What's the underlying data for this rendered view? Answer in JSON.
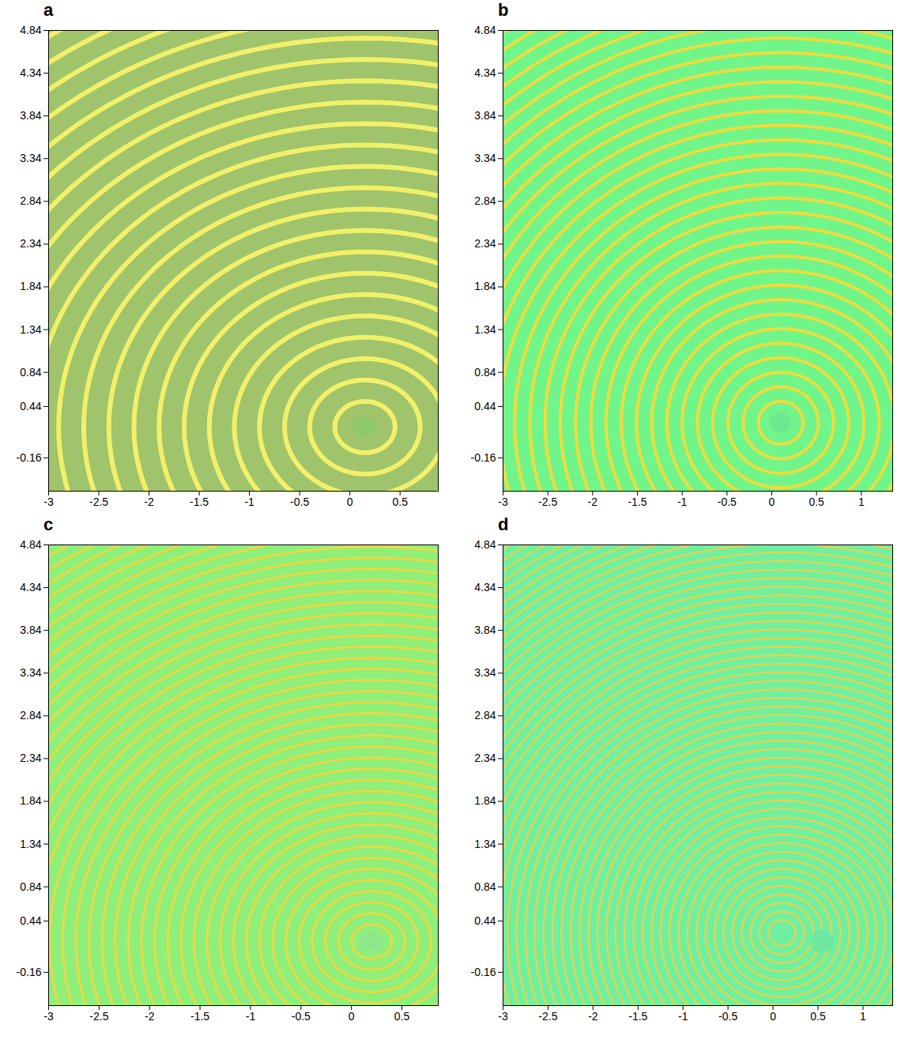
{
  "chart_data": [
    {
      "type": "rings",
      "title": "a",
      "color": "#9fc46b",
      "xlim": [
        -3,
        0.88
      ],
      "xticks": [
        -3,
        -2.5,
        -2,
        -1.5,
        -1,
        -0.5,
        0,
        0.5
      ],
      "ylim": [
        -0.55,
        4.84
      ],
      "yticks": [
        -0.16,
        0.44,
        0.84,
        1.34,
        1.84,
        2.34,
        2.84,
        3.34,
        3.84,
        4.34,
        4.84
      ],
      "crests": {
        "center": [
          0.15,
          0.2
        ],
        "color": "#f2f06a",
        "radii": [
          0.3,
          0.55,
          0.8,
          1.05,
          1.3,
          1.55,
          1.8,
          2.05,
          2.3,
          2.55,
          2.8,
          3.05,
          3.3,
          3.55,
          3.8,
          4.05,
          4.3,
          4.55,
          4.8,
          5.05,
          5.3,
          5.55
        ]
      },
      "obstacle": {
        "center": [
          0.15,
          0.2
        ],
        "radius": 0.12,
        "color": "#8ec96a"
      }
    },
    {
      "type": "rings",
      "title": "b",
      "color": "#70f58a",
      "xlim": [
        -3,
        1.35
      ],
      "xticks": [
        -3,
        -2.5,
        -2,
        -1.5,
        -1,
        -0.5,
        0,
        0.5,
        1
      ],
      "ylim": [
        -0.55,
        4.84
      ],
      "yticks": [
        -0.16,
        0.44,
        0.84,
        1.34,
        1.84,
        2.34,
        2.84,
        3.34,
        3.84,
        4.34,
        4.84
      ],
      "crests": {
        "center": [
          0.1,
          0.25
        ],
        "color": "#f0dc3c",
        "radii": [
          0.25,
          0.42,
          0.59,
          0.76,
          0.93,
          1.1,
          1.27,
          1.44,
          1.61,
          1.78,
          1.95,
          2.12,
          2.29,
          2.46,
          2.63,
          2.8,
          2.97,
          3.14,
          3.31,
          3.48,
          3.65,
          3.82,
          3.99,
          4.16,
          4.33,
          4.5,
          4.67,
          4.84,
          5.01,
          5.18,
          5.35,
          5.52
        ]
      },
      "obstacle": {
        "center": [
          0.1,
          0.25
        ],
        "radius": 0.12,
        "color": "#6fe98f"
      }
    },
    {
      "type": "rings",
      "title": "c",
      "color": "#8ef07a",
      "xlim": [
        -3,
        0.86
      ],
      "xticks": [
        -3,
        -2.5,
        -2,
        -1.5,
        -1,
        -0.5,
        0,
        0.5
      ],
      "ylim": [
        -0.55,
        4.84
      ],
      "yticks": [
        -0.16,
        0.44,
        0.84,
        1.34,
        1.84,
        2.34,
        2.84,
        3.34,
        3.84,
        4.34,
        4.84
      ],
      "crests": {
        "center": [
          0.2,
          0.2
        ],
        "color": "#ecd844",
        "radii": [
          0.2,
          0.33,
          0.46,
          0.59,
          0.72,
          0.85,
          0.98,
          1.11,
          1.24,
          1.37,
          1.5,
          1.63,
          1.76,
          1.89,
          2.02,
          2.15,
          2.28,
          2.41,
          2.54,
          2.67,
          2.8,
          2.93,
          3.06,
          3.19,
          3.32,
          3.45,
          3.58,
          3.71,
          3.84,
          3.97,
          4.1,
          4.23,
          4.36,
          4.49,
          4.62,
          4.75,
          4.88,
          5.01,
          5.14,
          5.27,
          5.4,
          5.53
        ]
      },
      "obstacle": {
        "center": [
          0.2,
          0.2
        ],
        "radius": 0.12,
        "color": "#8ee88a"
      }
    },
    {
      "type": "rings",
      "title": "d",
      "color": "#6ff0a0",
      "xlim": [
        -3,
        1.33
      ],
      "xticks": [
        -3,
        -2.5,
        -2,
        -1.5,
        -1,
        -0.5,
        0,
        0.5,
        1
      ],
      "ylim": [
        -0.55,
        4.84
      ],
      "yticks": [
        -0.16,
        0.44,
        0.84,
        1.34,
        1.84,
        2.34,
        2.84,
        3.34,
        3.84,
        4.34,
        4.84
      ],
      "crests": {
        "center": [
          0.1,
          0.3
        ],
        "color": "#e6d24e",
        "radii": [
          0.15,
          0.25,
          0.35,
          0.45,
          0.55,
          0.65,
          0.75,
          0.85,
          0.95,
          1.05,
          1.15,
          1.25,
          1.35,
          1.45,
          1.55,
          1.65,
          1.75,
          1.85,
          1.95,
          2.05,
          2.15,
          2.25,
          2.35,
          2.45,
          2.55,
          2.65,
          2.75,
          2.85,
          2.95,
          3.05,
          3.15,
          3.25,
          3.35,
          3.45,
          3.55,
          3.65,
          3.75,
          3.85,
          3.95,
          4.05,
          4.15,
          4.25,
          4.35,
          4.45,
          4.55,
          4.65,
          4.75,
          4.85,
          4.95,
          5.05,
          5.15,
          5.25,
          5.35,
          5.45,
          5.55
        ]
      },
      "obstacle": {
        "center": [
          0.55,
          0.2
        ],
        "radius": 0.13,
        "color": "#6ee8a0"
      }
    }
  ]
}
